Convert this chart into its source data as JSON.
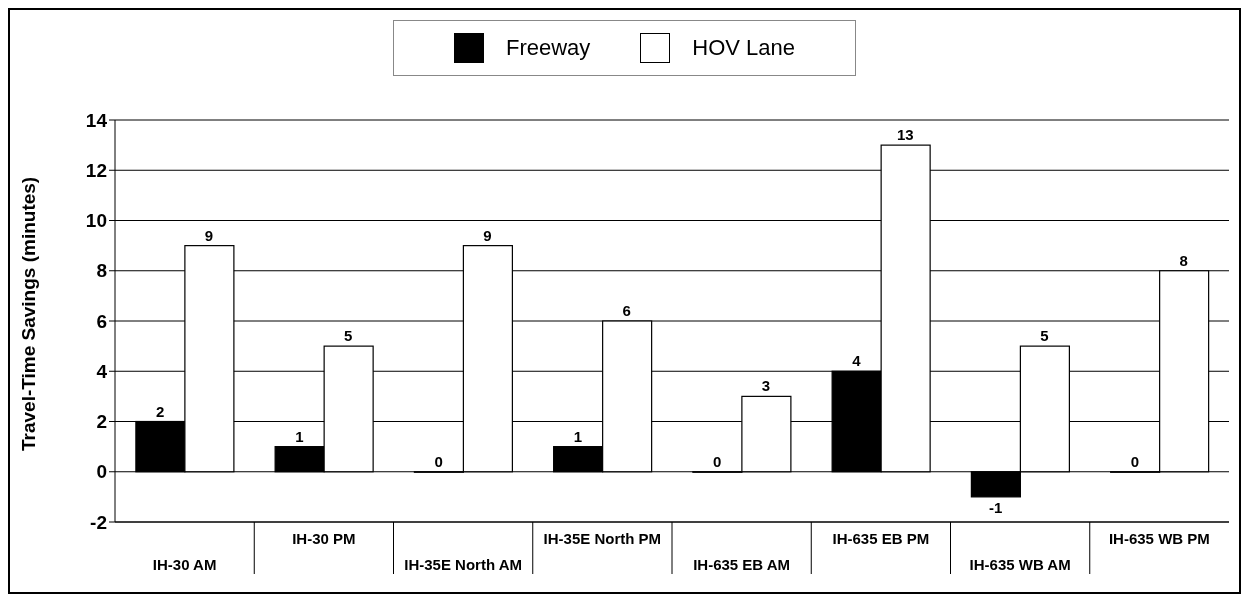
{
  "chart_data": {
    "type": "bar",
    "ylabel": "Travel-Time Savings (minutes)",
    "categories": [
      "IH-30 AM",
      "IH-30 PM",
      "IH-35E North AM",
      "IH-35E North PM",
      "IH-635 EB AM",
      "IH-635 EB PM",
      "IH-635 WB AM",
      "IH-635 WB PM"
    ],
    "series": [
      {
        "name": "Freeway",
        "color": "#000000",
        "values": [
          2,
          1,
          0,
          1,
          0,
          4,
          -1,
          0
        ]
      },
      {
        "name": "HOV Lane",
        "color": "#ffffff",
        "values": [
          9,
          5,
          9,
          6,
          3,
          13,
          5,
          8
        ]
      }
    ],
    "ylim": [
      -2,
      14
    ],
    "yticks": [
      -2,
      0,
      2,
      4,
      6,
      8,
      10,
      12,
      14
    ],
    "grid": "y",
    "legend": "top",
    "data_labels": true
  }
}
